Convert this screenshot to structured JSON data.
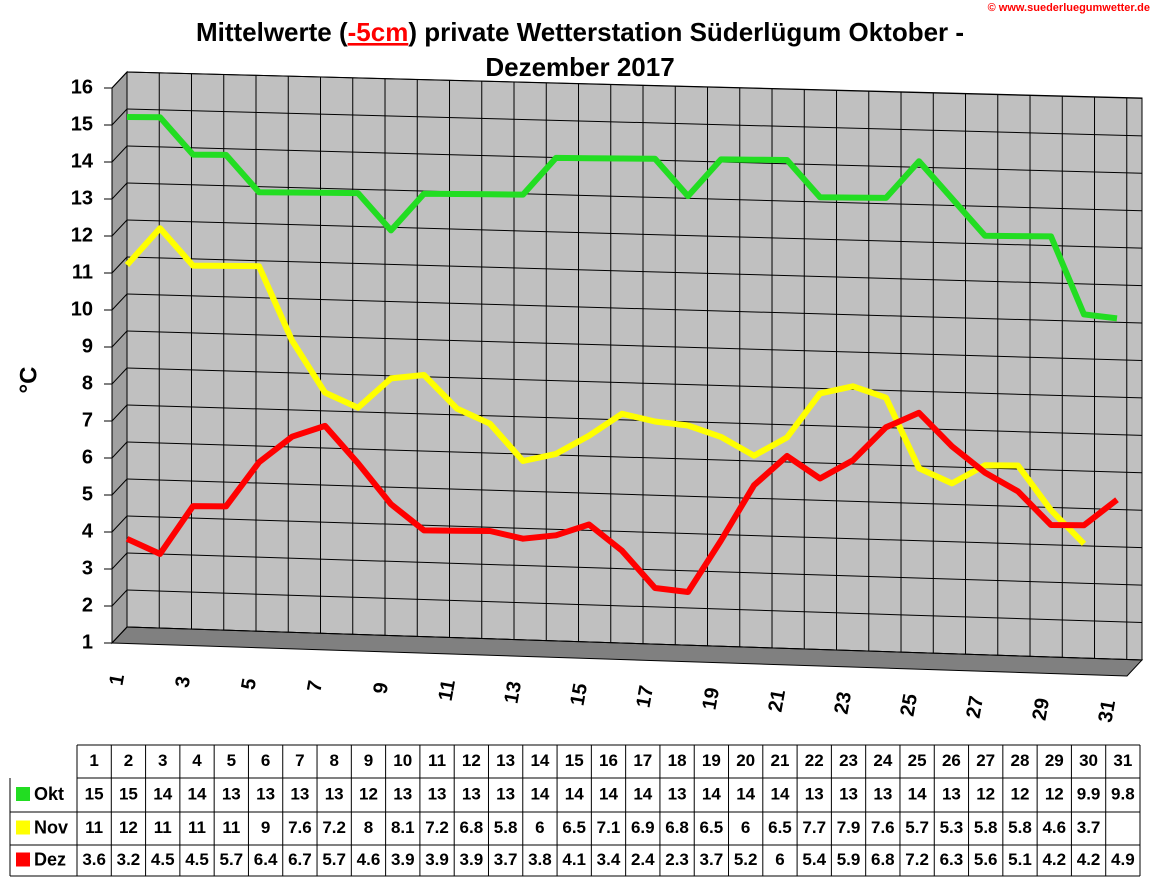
{
  "chart_data": {
    "type": "line",
    "title_parts": [
      "Mittelwerte (",
      "-5cm",
      ") private Wetterstation Süderlügum Oktober -",
      "Dezember 2017"
    ],
    "watermark": "© www.suederluegumwetter.de",
    "y_label": "°C",
    "categories": [
      1,
      2,
      3,
      4,
      5,
      6,
      7,
      8,
      9,
      10,
      11,
      12,
      13,
      14,
      15,
      16,
      17,
      18,
      19,
      20,
      21,
      22,
      23,
      24,
      25,
      26,
      27,
      28,
      29,
      30,
      31
    ],
    "ylim": [
      1,
      16
    ],
    "yticks": [
      1,
      2,
      3,
      4,
      5,
      6,
      7,
      8,
      9,
      10,
      11,
      12,
      13,
      14,
      15,
      16
    ],
    "grid": true,
    "series": [
      {
        "name": "Okt",
        "color": "#22dd22",
        "values": [
          15,
          15,
          14,
          14,
          13,
          13,
          13,
          13,
          12,
          13,
          13,
          13,
          13,
          14,
          14,
          14,
          14,
          13,
          14,
          14,
          14,
          13,
          13,
          13,
          14,
          13,
          12,
          12,
          12,
          9.9,
          9.8
        ]
      },
      {
        "name": "Nov",
        "color": "#ffff00",
        "values": [
          11,
          12,
          11,
          11,
          11,
          9,
          7.6,
          7.2,
          8,
          8.1,
          7.2,
          6.8,
          5.8,
          6,
          6.5,
          7.1,
          6.9,
          6.8,
          6.5,
          6,
          6.5,
          7.7,
          7.9,
          7.6,
          5.7,
          5.3,
          5.8,
          5.8,
          4.6,
          3.7,
          null
        ]
      },
      {
        "name": "Dez",
        "color": "#ff0000",
        "values": [
          3.6,
          3.2,
          4.5,
          4.5,
          5.7,
          6.4,
          6.7,
          5.7,
          4.6,
          3.9,
          3.9,
          3.9,
          3.7,
          3.8,
          4.1,
          3.4,
          2.4,
          2.3,
          3.7,
          5.2,
          6,
          5.4,
          5.9,
          6.8,
          7.2,
          6.3,
          5.6,
          5.1,
          4.2,
          4.2,
          4.9
        ]
      }
    ]
  }
}
